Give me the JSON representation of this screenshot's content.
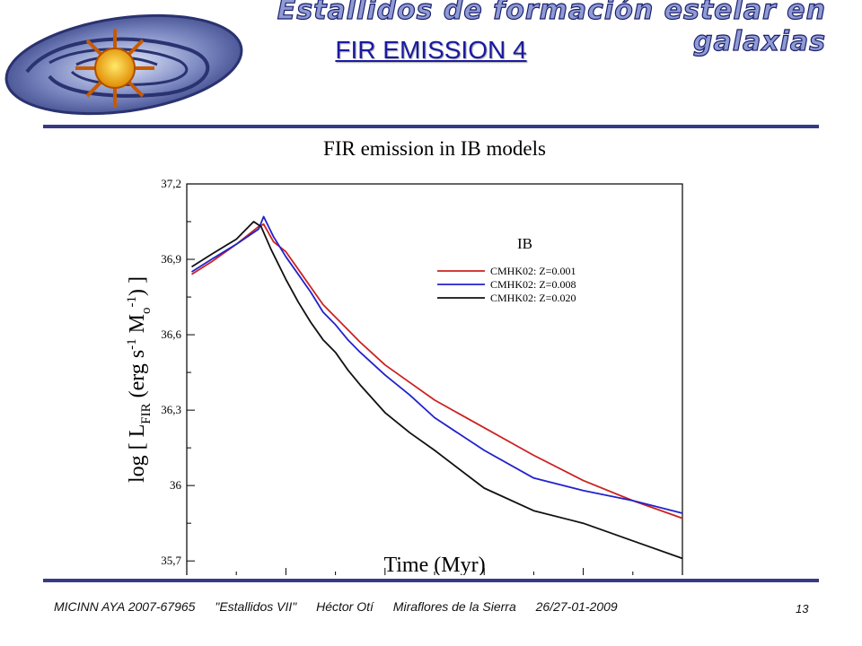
{
  "header": {
    "banner": "Estallidos de formación estelar en galaxias",
    "slide_title": "FIR EMISSION 4"
  },
  "footer": {
    "project": "MICINN AYA 2007-67965",
    "workshop": "\"Estallidos VII\"",
    "author": "Héctor Otí",
    "place": "Miraflores de la Sierra",
    "date": "26/27-01-2009",
    "page": "13"
  },
  "chart_data": {
    "type": "line",
    "title": "FIR emission in IB models",
    "xlabel": "Time (Myr)",
    "ylabel": "log [ L_FIR (erg s^-1 M_o^-1) ]",
    "xlim": [
      0,
      20
    ],
    "ylim": [
      35.64,
      37.2
    ],
    "xticks": [
      0,
      4,
      8,
      12,
      16,
      20
    ],
    "yticks": [
      35.7,
      36,
      36.3,
      36.6,
      36.9,
      37.2
    ],
    "ytick_labels": [
      "35,7",
      "36",
      "36,3",
      "36,6",
      "36,9",
      "37,2"
    ],
    "legend_title": "IB",
    "legend_position": "top-right",
    "grid": false,
    "series": [
      {
        "name": "CMHK02: Z=0.001",
        "color": "#cc2222",
        "x": [
          0.2,
          1,
          2,
          2.9,
          3.1,
          3.5,
          4,
          4.5,
          5,
          5.5,
          6,
          6.5,
          7,
          8,
          9,
          10,
          12,
          14,
          16,
          18,
          20
        ],
        "y": [
          36.84,
          36.89,
          36.96,
          37.03,
          37.04,
          36.97,
          36.93,
          36.86,
          36.79,
          36.72,
          36.67,
          36.62,
          36.57,
          36.48,
          36.41,
          36.34,
          36.23,
          36.12,
          36.02,
          35.94,
          35.87
        ]
      },
      {
        "name": "CMHK02: Z=0.008",
        "color": "#2222cc",
        "x": [
          0.2,
          1,
          2,
          2.9,
          3.1,
          3.5,
          4,
          4.5,
          5,
          5.5,
          6,
          6.5,
          7,
          8,
          9,
          10,
          12,
          14,
          16,
          18,
          20
        ],
        "y": [
          36.85,
          36.9,
          36.96,
          37.02,
          37.07,
          36.99,
          36.91,
          36.84,
          36.77,
          36.69,
          36.64,
          36.58,
          36.53,
          36.44,
          36.36,
          36.27,
          36.14,
          36.03,
          35.98,
          35.94,
          35.89
        ]
      },
      {
        "name": "CMHK02: Z=0.020",
        "color": "#111111",
        "x": [
          0.2,
          1,
          2,
          2.7,
          3.0,
          3.4,
          4,
          4.5,
          5,
          5.5,
          6,
          6.5,
          7,
          8,
          9,
          10,
          12,
          14,
          16,
          18,
          20
        ],
        "y": [
          36.87,
          36.92,
          36.98,
          37.05,
          37.03,
          36.94,
          36.82,
          36.73,
          36.65,
          36.58,
          36.53,
          36.46,
          36.4,
          36.29,
          36.21,
          36.14,
          35.99,
          35.9,
          35.85,
          35.78,
          35.71
        ]
      }
    ]
  }
}
